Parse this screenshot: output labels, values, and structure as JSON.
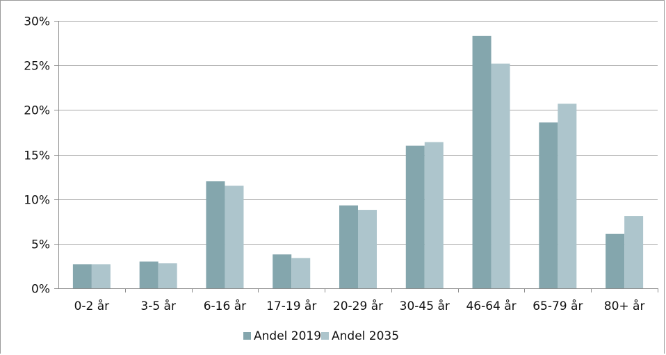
{
  "chart_data": {
    "type": "bar",
    "categories": [
      "0-2 år",
      "3-5 år",
      "6-16 år",
      "17-19 år",
      "20-29 år",
      "30-45 år",
      "46-64 år",
      "65-79 år",
      "80+ år"
    ],
    "series": [
      {
        "name": "Andel 2019",
        "values": [
          2.7,
          3.0,
          12.0,
          3.8,
          9.3,
          16.0,
          28.3,
          18.6,
          6.1
        ],
        "color": "#84a6ad"
      },
      {
        "name": "Andel 2035",
        "values": [
          2.7,
          2.8,
          11.5,
          3.4,
          8.8,
          16.4,
          25.2,
          20.7,
          8.1
        ],
        "color": "#adc5cc"
      }
    ],
    "y_ticks": [
      "0%",
      "5%",
      "10%",
      "15%",
      "20%",
      "25%",
      "30%"
    ],
    "ylim": [
      0,
      30
    ],
    "grid": true,
    "legend_position": "bottom",
    "title": "",
    "xlabel": "",
    "ylabel": ""
  }
}
